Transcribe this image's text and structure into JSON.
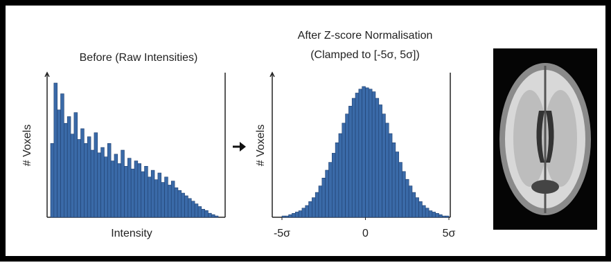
{
  "chart_data": [
    {
      "type": "bar",
      "title": "Before (Raw Intensities)",
      "x_label": "Intensity",
      "y_label": "# Voxels",
      "categories": [
        null,
        null,
        null,
        null,
        null,
        null,
        null,
        null,
        null,
        null,
        null,
        null,
        null,
        null,
        null,
        null,
        null,
        null,
        null,
        null,
        null,
        null,
        null,
        null,
        null,
        null,
        null,
        null,
        null,
        null,
        null,
        null,
        null,
        null,
        null,
        null,
        null,
        null,
        null,
        null,
        null,
        null,
        null,
        null,
        null,
        null,
        null,
        null,
        null,
        null
      ],
      "values": [
        55,
        100,
        80,
        92,
        70,
        75,
        62,
        78,
        58,
        66,
        55,
        60,
        50,
        63,
        48,
        52,
        45,
        55,
        42,
        47,
        40,
        50,
        38,
        44,
        36,
        42,
        40,
        34,
        38,
        30,
        35,
        28,
        33,
        26,
        30,
        24,
        27,
        22,
        20,
        18,
        16,
        14,
        12,
        10,
        8,
        6,
        5,
        3,
        2,
        1
      ],
      "color": "#3a6aa8",
      "ylim": [
        0,
        100
      ]
    },
    {
      "type": "histogram",
      "title": "After Z-score Normalisation",
      "subtitle": "(Clamped to [-5σ, 5σ])",
      "y_label": "# Voxels",
      "bins": [
        -5,
        -4.8,
        -4.6,
        -4.4,
        -4.2,
        -4,
        -3.8,
        -3.6,
        -3.4,
        -3.2,
        -3,
        -2.8,
        -2.6,
        -2.4,
        -2.2,
        -2,
        -1.8,
        -1.6,
        -1.4,
        -1.2,
        -1,
        -0.8,
        -0.6,
        -0.4,
        -0.2,
        0,
        0.2,
        0.4,
        0.6,
        0.8,
        1,
        1.2,
        1.4,
        1.6,
        1.8,
        2,
        2.2,
        2.4,
        2.6,
        2.8,
        3,
        3.2,
        3.4,
        3.6,
        3.8,
        4,
        4.2,
        4.4,
        4.6,
        4.8,
        5
      ],
      "values": [
        1,
        1,
        2,
        3,
        4,
        5,
        7,
        9,
        12,
        15,
        19,
        24,
        30,
        36,
        42,
        49,
        57,
        64,
        72,
        79,
        85,
        91,
        95,
        98,
        100,
        99,
        98,
        96,
        91,
        86,
        79,
        72,
        64,
        57,
        50,
        42,
        35,
        29,
        24,
        19,
        15,
        12,
        9,
        7,
        5,
        4,
        3,
        2,
        1,
        1
      ],
      "color": "#3a6aa8",
      "xlim": [
        -5,
        5
      ],
      "ylim": [
        0,
        100
      ],
      "xticks": [
        {
          "value": -5,
          "label": "-5σ"
        },
        0,
        {
          "value": 5,
          "label": "5σ"
        }
      ]
    }
  ]
}
